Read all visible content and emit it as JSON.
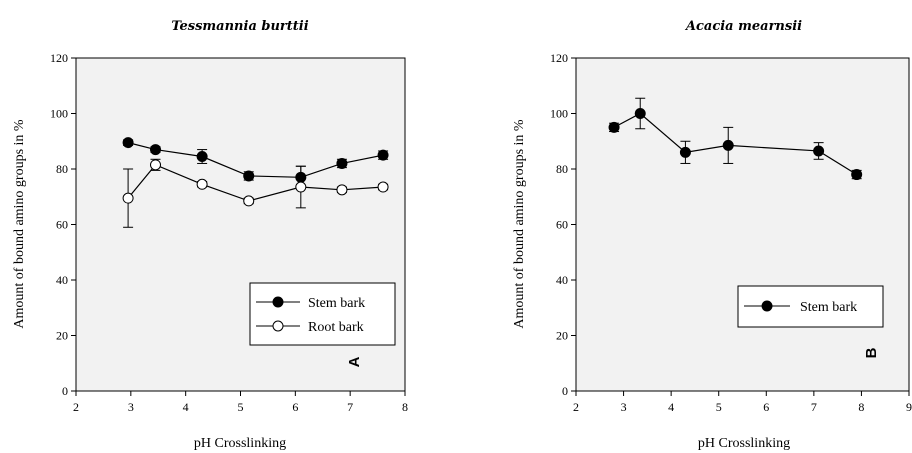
{
  "chart_data": [
    {
      "type": "line",
      "title": "Tessmannia burttii",
      "xlabel": "pH Crosslinking",
      "ylabel": "Amount of bound amino groups in %",
      "xlim": [
        2,
        8
      ],
      "ylim": [
        0,
        120
      ],
      "xticks": [
        "2",
        "3",
        "4",
        "5",
        "6",
        "7",
        "8"
      ],
      "yticks": [
        "0",
        "20",
        "40",
        "60",
        "80",
        "100",
        "120"
      ],
      "panel_letter": "A",
      "legend_position": "bottom-right",
      "plot_background": "#f2f2f2",
      "series": [
        {
          "name": "Stem bark",
          "marker": "filled-circle",
          "x": [
            2.95,
            3.45,
            4.3,
            5.15,
            6.1,
            6.85,
            7.6
          ],
          "y": [
            89.5,
            87,
            84.5,
            77.5,
            77,
            82,
            85
          ],
          "err": [
            1,
            1,
            2.5,
            1.5,
            4,
            1.5,
            1.5
          ]
        },
        {
          "name": "Root bark",
          "marker": "open-circle",
          "x": [
            2.95,
            3.45,
            4.3,
            5.15,
            6.1,
            6.85,
            7.6
          ],
          "y": [
            69.5,
            81.5,
            74.5,
            68.5,
            73.5,
            72.5,
            73.5
          ],
          "err": [
            10.5,
            2,
            1,
            1,
            7.5,
            1,
            1
          ]
        }
      ]
    },
    {
      "type": "line",
      "title": "Acacia mearnsii",
      "xlabel": "pH Crosslinking",
      "ylabel": "Amount of bound amino groups in %",
      "xlim": [
        2,
        9
      ],
      "ylim": [
        0,
        120
      ],
      "xticks": [
        "2",
        "3",
        "4",
        "5",
        "6",
        "7",
        "8",
        "9"
      ],
      "yticks": [
        "0",
        "20",
        "40",
        "60",
        "80",
        "100",
        "120"
      ],
      "panel_letter": "B",
      "legend_position": "middle-right",
      "plot_background": "#f2f2f2",
      "series": [
        {
          "name": "Stem bark",
          "marker": "filled-circle",
          "x": [
            2.8,
            3.35,
            4.3,
            5.2,
            7.1,
            7.9
          ],
          "y": [
            95,
            100,
            86,
            88.5,
            86.5,
            78
          ],
          "err": [
            1.5,
            5.5,
            4,
            6.5,
            3,
            1.5
          ]
        }
      ]
    }
  ]
}
